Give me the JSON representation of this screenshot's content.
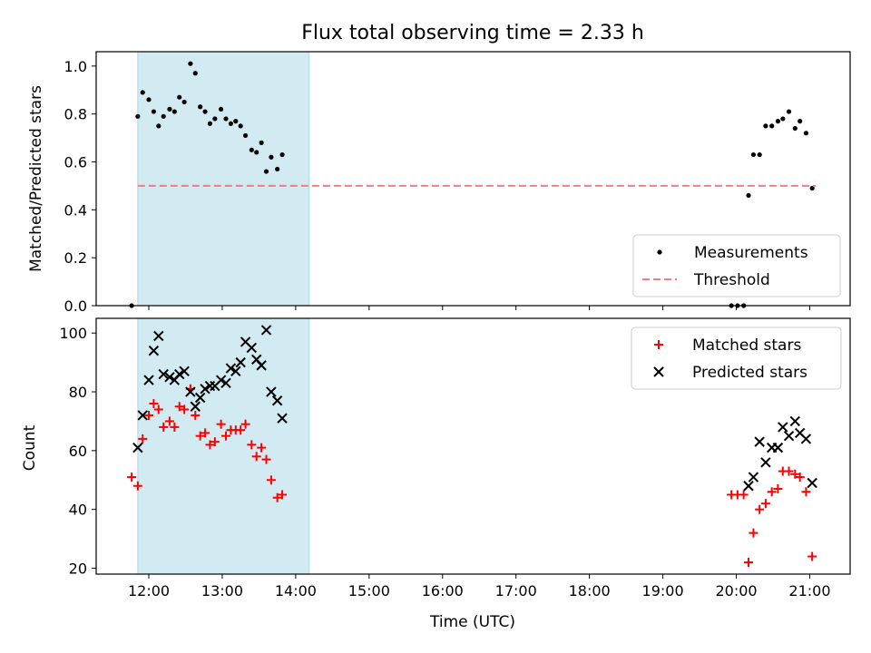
{
  "title": "Flux total observing time = 2.33 h",
  "colors": {
    "measurement": "#000000",
    "threshold": "#f08080",
    "matched": "#ff0000",
    "predicted": "#000000",
    "shade": "#add8e6"
  },
  "chart_data": [
    {
      "type": "scatter",
      "ylabel": "Matched/Predicted stars",
      "ylim": [
        0,
        1.06
      ],
      "yticks": [
        0.0,
        0.2,
        0.4,
        0.6,
        0.8,
        1.0
      ],
      "ytick_labels": [
        "0.0",
        "0.2",
        "0.4",
        "0.6",
        "0.8",
        "1.0"
      ],
      "legend_position": "bottom-right",
      "shaded_span": [
        "11:51",
        "14:11"
      ],
      "series": [
        {
          "name": "Measurements",
          "marker": "dot",
          "points": [
            [
              "11:46",
              0.0
            ],
            [
              "11:51",
              0.79
            ],
            [
              "11:55",
              0.89
            ],
            [
              "12:00",
              0.86
            ],
            [
              "12:04",
              0.81
            ],
            [
              "12:08",
              0.75
            ],
            [
              "12:12",
              0.79
            ],
            [
              "12:17",
              0.82
            ],
            [
              "12:21",
              0.81
            ],
            [
              "12:25",
              0.87
            ],
            [
              "12:29",
              0.85
            ],
            [
              "12:34",
              1.01
            ],
            [
              "12:38",
              0.97
            ],
            [
              "12:42",
              0.83
            ],
            [
              "12:46",
              0.81
            ],
            [
              "12:50",
              0.76
            ],
            [
              "12:54",
              0.78
            ],
            [
              "12:59",
              0.82
            ],
            [
              "13:03",
              0.78
            ],
            [
              "13:07",
              0.76
            ],
            [
              "13:11",
              0.77
            ],
            [
              "13:15",
              0.75
            ],
            [
              "13:19",
              0.71
            ],
            [
              "13:24",
              0.65
            ],
            [
              "13:28",
              0.64
            ],
            [
              "13:32",
              0.68
            ],
            [
              "13:36",
              0.56
            ],
            [
              "13:40",
              0.62
            ],
            [
              "13:45",
              0.57
            ],
            [
              "13:49",
              0.63
            ],
            [
              "19:56",
              0.0
            ],
            [
              "20:01",
              0.0
            ],
            [
              "20:06",
              0.0
            ],
            [
              "20:10",
              0.46
            ],
            [
              "20:14",
              0.63
            ],
            [
              "20:19",
              0.63
            ],
            [
              "20:24",
              0.75
            ],
            [
              "20:29",
              0.75
            ],
            [
              "20:34",
              0.77
            ],
            [
              "20:38",
              0.78
            ],
            [
              "20:43",
              0.81
            ],
            [
              "20:48",
              0.74
            ],
            [
              "20:52",
              0.77
            ],
            [
              "20:57",
              0.72
            ],
            [
              "21:02",
              0.49
            ]
          ]
        },
        {
          "name": "Threshold",
          "marker": "dashed-line",
          "points": [
            [
              "11:51",
              0.5
            ],
            [
              "21:05",
              0.5
            ]
          ]
        }
      ]
    },
    {
      "type": "scatter",
      "xlabel": "Time (UTC)",
      "ylabel": "Count",
      "ylim": [
        18,
        105
      ],
      "yticks": [
        20,
        40,
        60,
        80,
        100
      ],
      "ytick_labels": [
        "20",
        "40",
        "60",
        "80",
        "100"
      ],
      "xticks": [
        "12:00",
        "13:00",
        "14:00",
        "15:00",
        "16:00",
        "17:00",
        "18:00",
        "19:00",
        "20:00",
        "21:00"
      ],
      "xlim": [
        "11:17",
        "21:33"
      ],
      "legend_position": "top-right",
      "shaded_span": [
        "11:51",
        "14:11"
      ],
      "series": [
        {
          "name": "Matched stars",
          "marker": "plus",
          "points": [
            [
              "11:46",
              51
            ],
            [
              "11:51",
              48
            ],
            [
              "11:55",
              64
            ],
            [
              "12:00",
              72
            ],
            [
              "12:04",
              76
            ],
            [
              "12:08",
              74
            ],
            [
              "12:12",
              68
            ],
            [
              "12:17",
              70
            ],
            [
              "12:21",
              68
            ],
            [
              "12:25",
              75
            ],
            [
              "12:29",
              74
            ],
            [
              "12:34",
              81
            ],
            [
              "12:38",
              72
            ],
            [
              "12:42",
              65
            ],
            [
              "12:46",
              66
            ],
            [
              "12:50",
              62
            ],
            [
              "12:54",
              63
            ],
            [
              "12:59",
              69
            ],
            [
              "13:03",
              65
            ],
            [
              "13:07",
              67
            ],
            [
              "13:11",
              67
            ],
            [
              "13:15",
              67
            ],
            [
              "13:19",
              69
            ],
            [
              "13:24",
              62
            ],
            [
              "13:28",
              58
            ],
            [
              "13:32",
              61
            ],
            [
              "13:36",
              57
            ],
            [
              "13:40",
              50
            ],
            [
              "13:45",
              44
            ],
            [
              "13:49",
              45
            ],
            [
              "19:56",
              45
            ],
            [
              "20:01",
              45
            ],
            [
              "20:06",
              45
            ],
            [
              "20:10",
              22
            ],
            [
              "20:14",
              32
            ],
            [
              "20:19",
              40
            ],
            [
              "20:24",
              42
            ],
            [
              "20:29",
              46
            ],
            [
              "20:34",
              47
            ],
            [
              "20:38",
              53
            ],
            [
              "20:43",
              53
            ],
            [
              "20:48",
              52
            ],
            [
              "20:52",
              51
            ],
            [
              "20:57",
              46
            ],
            [
              "21:02",
              24
            ]
          ]
        },
        {
          "name": "Predicted stars",
          "marker": "x",
          "points": [
            [
              "11:51",
              61
            ],
            [
              "11:55",
              72
            ],
            [
              "12:00",
              84
            ],
            [
              "12:04",
              94
            ],
            [
              "12:08",
              99
            ],
            [
              "12:12",
              86
            ],
            [
              "12:17",
              85
            ],
            [
              "12:21",
              84
            ],
            [
              "12:25",
              86
            ],
            [
              "12:29",
              87
            ],
            [
              "12:34",
              80
            ],
            [
              "12:38",
              75
            ],
            [
              "12:42",
              78
            ],
            [
              "12:46",
              81
            ],
            [
              "12:50",
              82
            ],
            [
              "12:54",
              82
            ],
            [
              "12:59",
              84
            ],
            [
              "13:03",
              83
            ],
            [
              "13:07",
              88
            ],
            [
              "13:11",
              87
            ],
            [
              "13:15",
              90
            ],
            [
              "13:19",
              97
            ],
            [
              "13:24",
              95
            ],
            [
              "13:28",
              91
            ],
            [
              "13:32",
              89
            ],
            [
              "13:36",
              101
            ],
            [
              "13:40",
              80
            ],
            [
              "13:45",
              77
            ],
            [
              "13:49",
              71
            ],
            [
              "20:10",
              48
            ],
            [
              "20:14",
              51
            ],
            [
              "20:19",
              63
            ],
            [
              "20:24",
              56
            ],
            [
              "20:29",
              61
            ],
            [
              "20:34",
              61
            ],
            [
              "20:38",
              68
            ],
            [
              "20:43",
              65
            ],
            [
              "20:48",
              70
            ],
            [
              "20:52",
              66
            ],
            [
              "20:57",
              64
            ],
            [
              "21:02",
              49
            ]
          ]
        }
      ]
    }
  ]
}
